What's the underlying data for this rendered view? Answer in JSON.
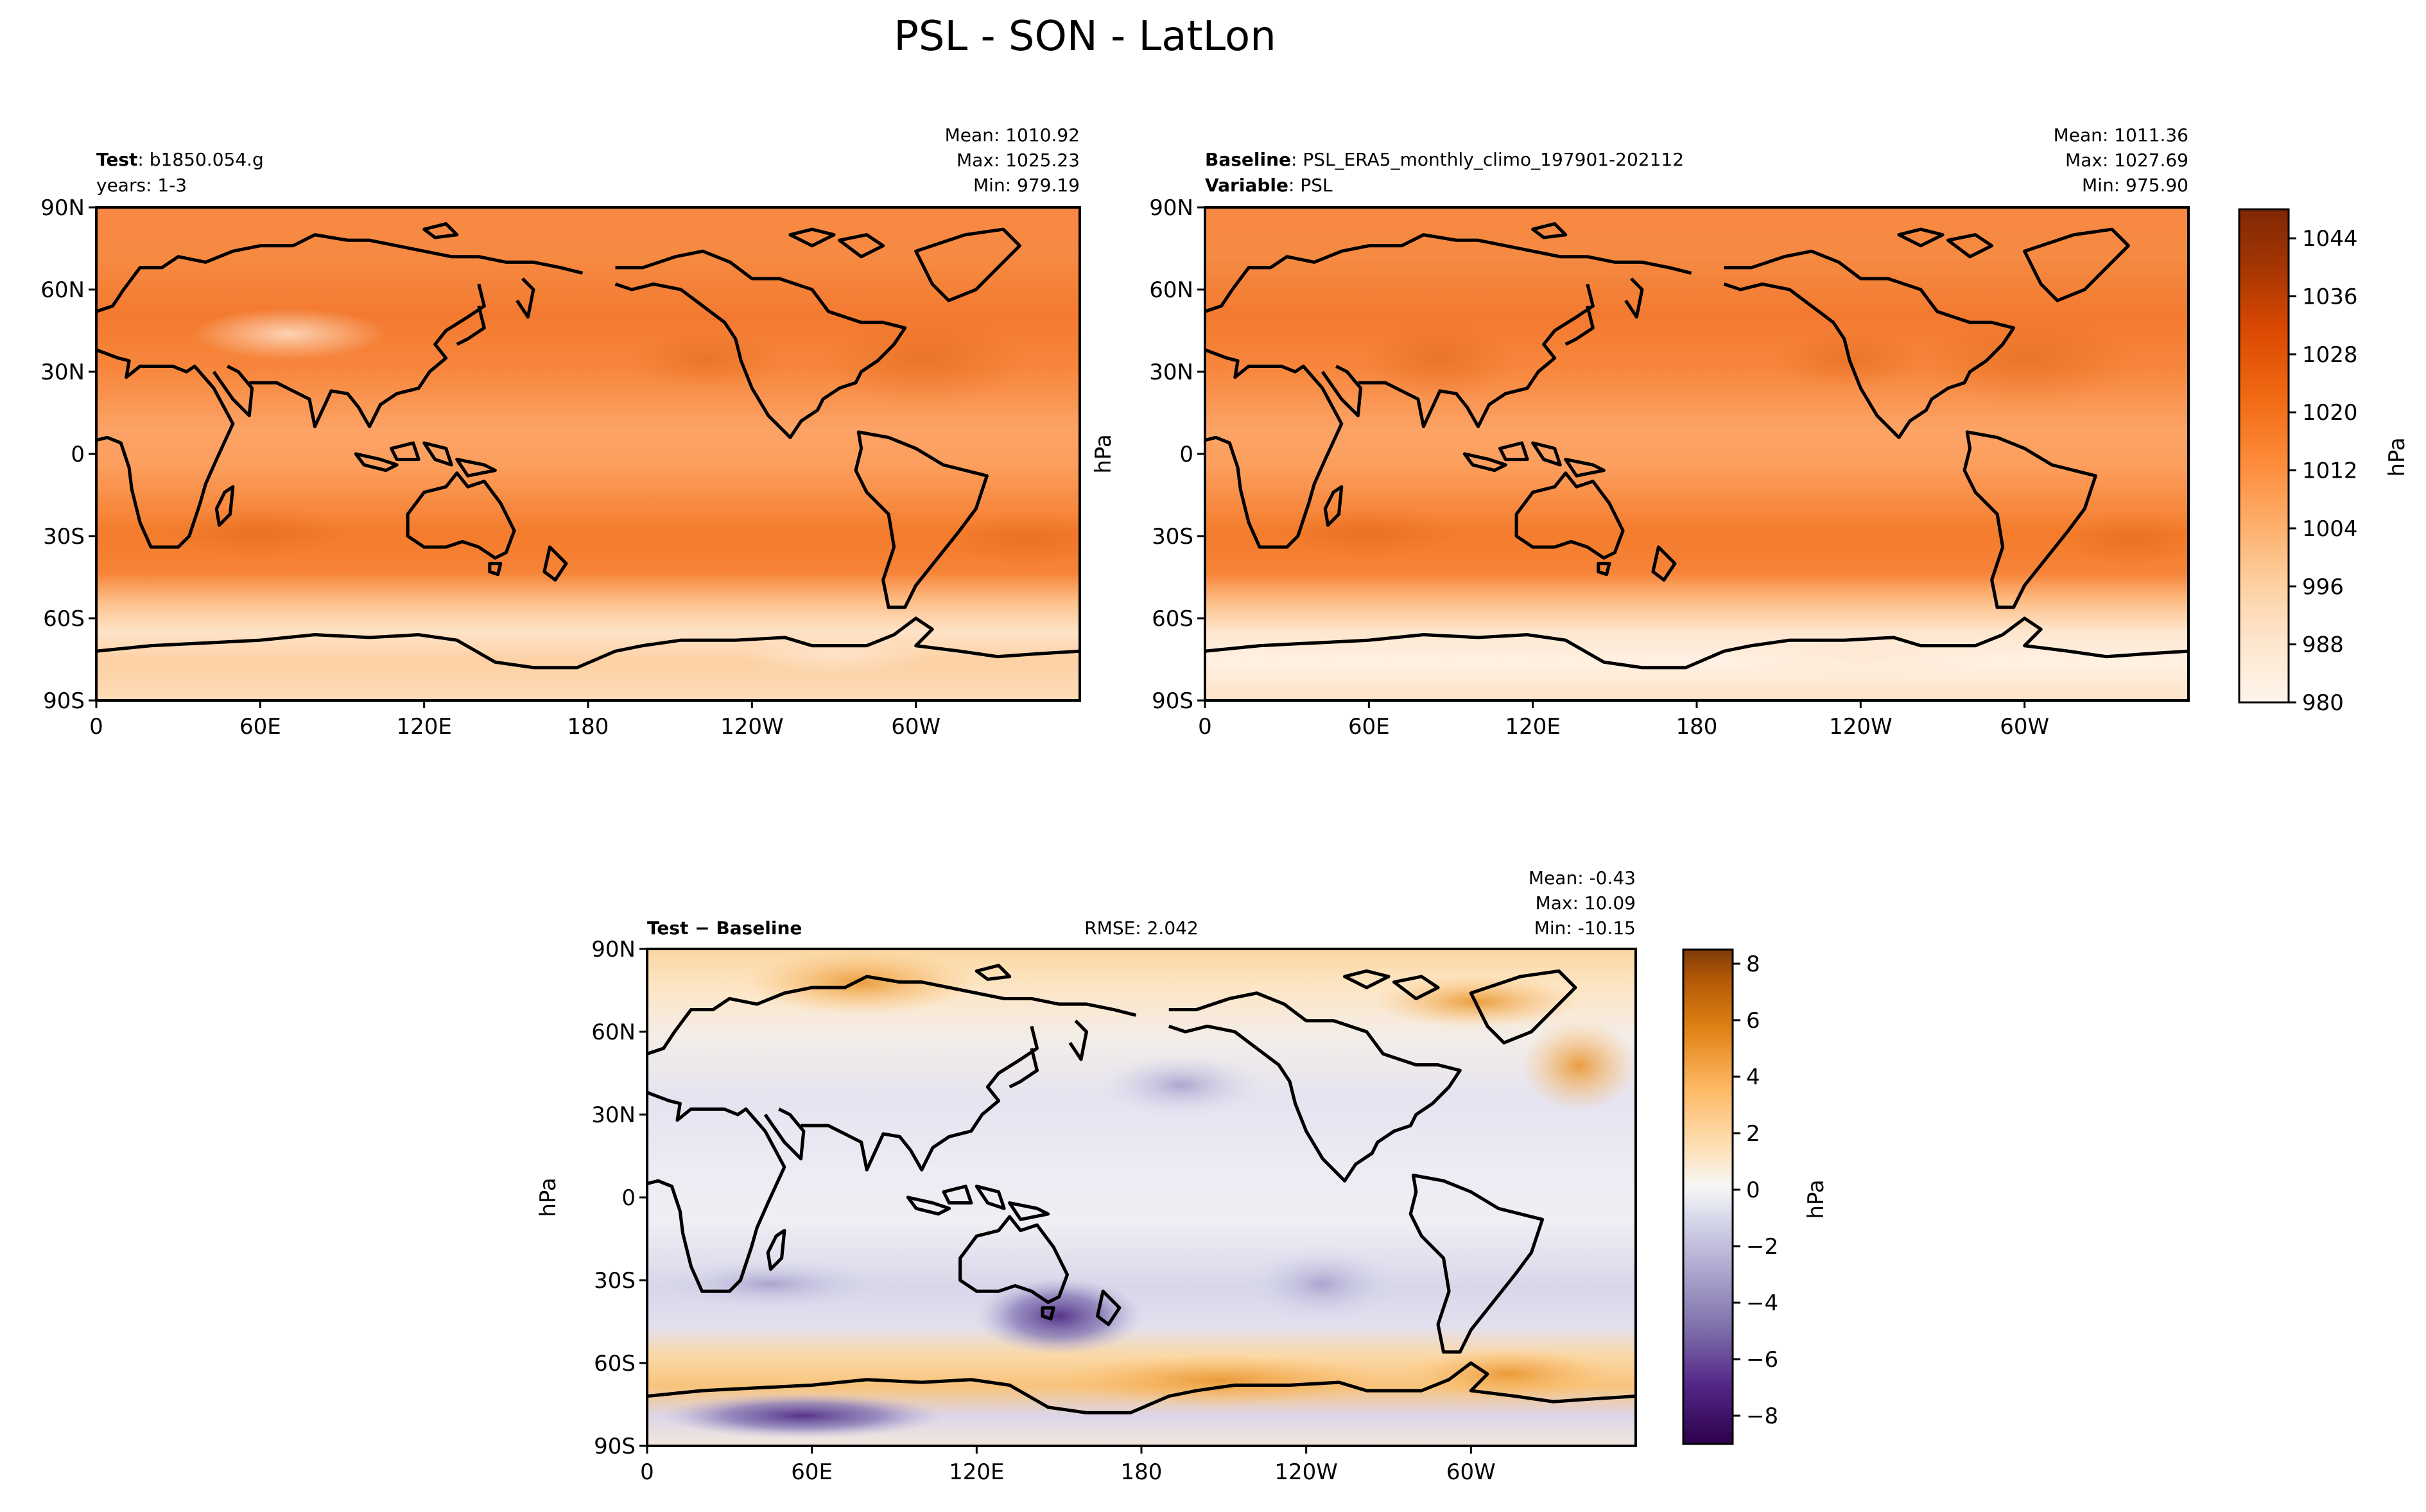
{
  "suptitle": "PSL - SON - LatLon",
  "lat_ticks": [
    "90N",
    "60N",
    "30N",
    "0",
    "30S",
    "60S",
    "90S"
  ],
  "lon_ticks": [
    "0",
    "60E",
    "120E",
    "180",
    "120W",
    "60W"
  ],
  "colors": {
    "oranges": [
      "#fff5eb",
      "#fee6ce",
      "#fdd0a2",
      "#fdae6b",
      "#fd8d3c",
      "#f16913",
      "#d94801",
      "#a63603",
      "#7f2704"
    ],
    "puor": [
      "#2d004b",
      "#542788",
      "#8073ac",
      "#b2abd2",
      "#d8daeb",
      "#f7f7f7",
      "#fee0b6",
      "#fdb863",
      "#e08214",
      "#b35806",
      "#7f3b08"
    ],
    "land_line": "#000000"
  },
  "panels": {
    "test": {
      "label_bold": "Test",
      "label_value": "b1850.054.g",
      "label_line2": "years: 1-3",
      "mean": "Mean: 1010.92",
      "max": "Max: 1025.23",
      "min": "Min: 979.19"
    },
    "baseline": {
      "label_bold": "Baseline",
      "label_value": "PSL_ERA5_monthly_climo_197901-202112",
      "label_bold2": "Variable",
      "label_value2": "PSL",
      "mean": "Mean: 1011.36",
      "max": "Max: 1027.69",
      "min": "Min: 975.90",
      "ylabel": "hPa"
    },
    "diff": {
      "label_bold": "Test",
      "label_bold2": "Baseline",
      "rmse": "RMSE: 2.042",
      "mean": "Mean: -0.43",
      "max": "Max: 10.09",
      "min": "Min: -10.15",
      "ylabel": "hPa"
    }
  },
  "colorbars": {
    "main": {
      "label": "hPa",
      "ticks": [
        "1044",
        "1036",
        "1028",
        "1020",
        "1012",
        "1004",
        "996",
        "988",
        "980"
      ],
      "range": [
        980,
        1048
      ]
    },
    "diff": {
      "label": "hPa",
      "ticks": [
        "8",
        "6",
        "4",
        "2",
        "0",
        "−2",
        "−4",
        "−6",
        "−8"
      ],
      "range": [
        -9,
        8.5
      ]
    }
  },
  "chart_data": [
    {
      "type": "heatmap",
      "title": "Test: b1850.054.g (years: 1-3)",
      "variable": "PSL",
      "units": "hPa",
      "xlim": [
        0,
        360
      ],
      "ylim": [
        -90,
        90
      ],
      "x_ticks": [
        "0",
        "60E",
        "120E",
        "180",
        "120W",
        "60W"
      ],
      "y_ticks": [
        "90N",
        "60N",
        "30N",
        "0",
        "30S",
        "60S",
        "90S"
      ],
      "stats": {
        "mean": 1010.92,
        "max": 1025.23,
        "min": 979.19
      },
      "approx_zonal_mean": {
        "lat": [
          90,
          75,
          60,
          45,
          30,
          15,
          0,
          -15,
          -30,
          -45,
          -60,
          -75,
          -90
        ],
        "value": [
          1013,
          1014,
          1013,
          1016,
          1017,
          1012,
          1010,
          1012,
          1018,
          1014,
          996,
          987,
          992
        ]
      }
    },
    {
      "type": "heatmap",
      "title": "Baseline: PSL_ERA5_monthly_climo_197901-202112",
      "variable": "PSL",
      "units": "hPa",
      "xlim": [
        0,
        360
      ],
      "ylim": [
        -90,
        90
      ],
      "x_ticks": [
        "0",
        "60E",
        "120E",
        "180",
        "120W",
        "60W"
      ],
      "y_ticks": [
        "90N",
        "60N",
        "30N",
        "0",
        "30S",
        "60S",
        "90S"
      ],
      "stats": {
        "mean": 1011.36,
        "max": 1027.69,
        "min": 975.9
      },
      "approx_zonal_mean": {
        "lat": [
          90,
          75,
          60,
          45,
          30,
          15,
          0,
          -15,
          -30,
          -45,
          -60,
          -75,
          -90
        ],
        "value": [
          1013,
          1014,
          1012,
          1016,
          1017,
          1012,
          1010,
          1012,
          1018,
          1014,
          994,
          985,
          990
        ]
      }
    },
    {
      "type": "heatmap",
      "title": "Test − Baseline",
      "variable": "PSL difference",
      "units": "hPa",
      "xlim": [
        0,
        360
      ],
      "ylim": [
        -90,
        90
      ],
      "x_ticks": [
        "0",
        "60E",
        "120E",
        "180",
        "120W",
        "60W"
      ],
      "y_ticks": [
        "90N",
        "60N",
        "30N",
        "0",
        "30S",
        "60S",
        "90S"
      ],
      "rmse": 2.042,
      "stats": {
        "mean": -0.43,
        "max": 10.09,
        "min": -10.15
      },
      "approx_zonal_mean": {
        "lat": [
          90,
          75,
          60,
          45,
          30,
          15,
          0,
          -15,
          -30,
          -45,
          -60,
          -75,
          -90
        ],
        "value": [
          1.5,
          2,
          1,
          -1,
          -1,
          -0.5,
          0,
          -0.5,
          -1.5,
          -2,
          2,
          0,
          1
        ]
      }
    }
  ]
}
